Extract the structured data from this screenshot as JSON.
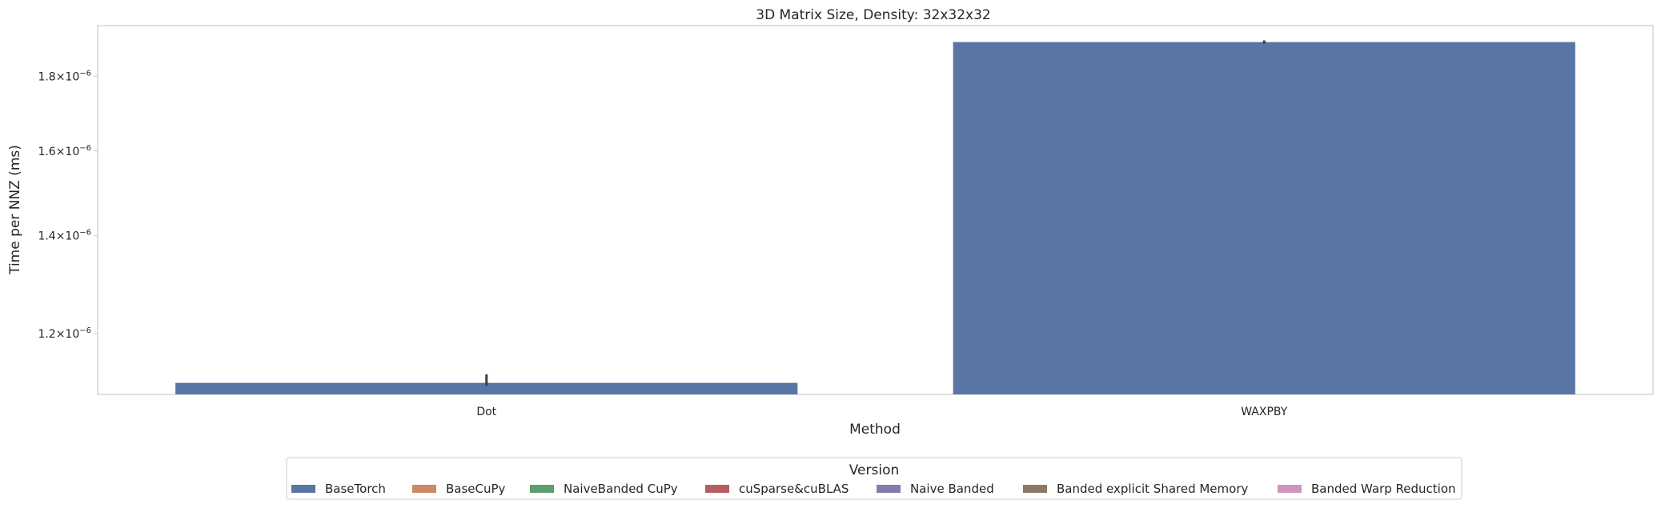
{
  "chart_data": {
    "type": "bar",
    "title": "3D Matrix Size, Density: 32x32x32",
    "xlabel": "Method",
    "ylabel": "Time per NNZ (ms)",
    "yscale": "log",
    "ylim": [
      1.09e-06,
      1.95e-06
    ],
    "yticks": [
      {
        "value": 1.2e-06,
        "mantissa": "1.2",
        "exp": "−6"
      },
      {
        "value": 1.4e-06,
        "mantissa": "1.4",
        "exp": "−6"
      },
      {
        "value": 1.6e-06,
        "mantissa": "1.6",
        "exp": "−6"
      },
      {
        "value": 1.8e-06,
        "mantissa": "1.8",
        "exp": "−6"
      }
    ],
    "categories": [
      "Dot",
      "WAXPBY"
    ],
    "series": [
      {
        "name": "BaseTorch",
        "color": "#5875a4",
        "values": [
          1.11e-06,
          1.9e-06
        ],
        "errors": [
          [
            1.105e-06,
            1.125e-06
          ],
          [
            1.895e-06,
            1.905e-06
          ]
        ]
      }
    ],
    "grid": false,
    "legend": {
      "title": "Version",
      "placement": "bottom-center",
      "entries": [
        {
          "label": "BaseTorch",
          "color": "#5875a4"
        },
        {
          "label": "BaseCuPy",
          "color": "#cc8963"
        },
        {
          "label": "NaiveBanded CuPy",
          "color": "#5f9e6e"
        },
        {
          "label": "cuSparse&cuBLAS",
          "color": "#b55d60"
        },
        {
          "label": "Naive Banded",
          "color": "#857aab"
        },
        {
          "label": "Banded explicit Shared Memory",
          "color": "#8d7866"
        },
        {
          "label": "Banded Warp Reduction",
          "color": "#d095bf"
        }
      ]
    }
  }
}
